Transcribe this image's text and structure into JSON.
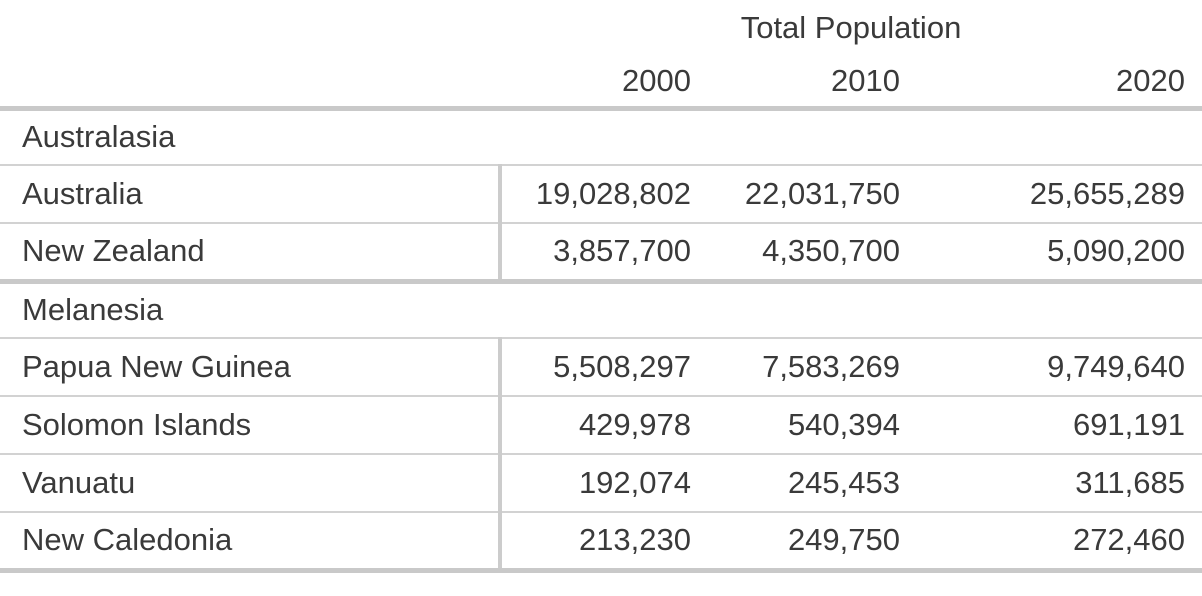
{
  "colors": {
    "text-color": "#3a3a3a",
    "thin-border": "#d2d2d2",
    "thick-border": "#c9c9c9",
    "divider": "#cccccc",
    "bg": "#ffffff"
  },
  "chart_data": {
    "type": "table",
    "title": "Total Population",
    "columns": [
      "2000",
      "2010",
      "2020"
    ],
    "sections": [
      {
        "label": "Australasia",
        "rows": [
          {
            "name": "Australia",
            "values": [
              19028802,
              22031750,
              25655289
            ],
            "display": [
              "19,028,802",
              "22,031,750",
              "25,655,289"
            ]
          },
          {
            "name": "New Zealand",
            "values": [
              3857700,
              4350700,
              5090200
            ],
            "display": [
              "3,857,700",
              "4,350,700",
              "5,090,200"
            ]
          }
        ]
      },
      {
        "label": "Melanesia",
        "rows": [
          {
            "name": "Papua New Guinea",
            "values": [
              5508297,
              7583269,
              9749640
            ],
            "display": [
              "5,508,297",
              "7,583,269",
              "9,749,640"
            ]
          },
          {
            "name": "Solomon Islands",
            "values": [
              429978,
              540394,
              691191
            ],
            "display": [
              "429,978",
              "540,394",
              "691,191"
            ]
          },
          {
            "name": "Vanuatu",
            "values": [
              192074,
              245453,
              311685
            ],
            "display": [
              "192,074",
              "245,453",
              "311,685"
            ]
          },
          {
            "name": "New Caledonia",
            "values": [
              213230,
              249750,
              272460
            ],
            "display": [
              "213,230",
              "249,750",
              "272,460"
            ]
          }
        ]
      }
    ]
  }
}
